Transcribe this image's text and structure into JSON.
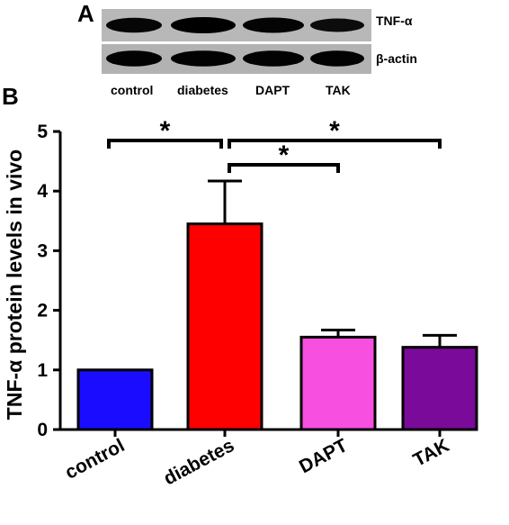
{
  "panel_a": {
    "letter": "A",
    "blots": [
      {
        "name": "TNF-α"
      },
      {
        "name": "β-actin"
      }
    ],
    "lanes": [
      "control",
      "diabetes",
      "DAPT",
      "TAK"
    ],
    "band_intensity": {
      "TNF-α": [
        0.85,
        1.0,
        0.9,
        0.7
      ],
      "β-actin": [
        0.95,
        0.95,
        0.95,
        0.95
      ]
    }
  },
  "panel_b": {
    "letter": "B"
  },
  "colors": {
    "control": "#1a0dff",
    "diabetes": "#ff0000",
    "DAPT": "#f74fdf",
    "TAK": "#7a0a99"
  },
  "chart_data": {
    "type": "bar",
    "title": "",
    "xlabel": "",
    "ylabel": "TNF-α  protein levels in vivo",
    "categories": [
      "control",
      "diabetes",
      "DAPT",
      "TAK"
    ],
    "values": [
      1.0,
      3.45,
      1.55,
      1.38
    ],
    "errors": [
      0,
      0.72,
      0.12,
      0.2
    ],
    "ylim": [
      0,
      5
    ],
    "yticks": [
      "0",
      "1",
      "2",
      "3",
      "4",
      "5"
    ],
    "significance": [
      {
        "from": "control",
        "to": "diabetes",
        "label": "*"
      },
      {
        "from": "diabetes",
        "to": "TAK",
        "label": "*"
      },
      {
        "from": "diabetes",
        "to": "DAPT",
        "label": "*"
      }
    ]
  }
}
